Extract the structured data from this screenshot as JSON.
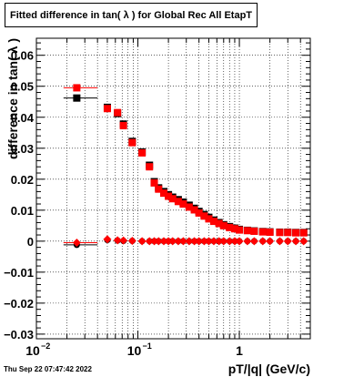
{
  "canvas": {
    "title": "Fitted difference in tan( λ ) for Global Rec All EtapT",
    "timestamp": "Thu Sep 22 07:47:42 2022"
  },
  "chart_data": {
    "type": "scatter",
    "title": "Fitted difference in tan( λ ) for Global Rec All EtapT",
    "xlabel": "pT/|q| (GeV/c)",
    "ylabel": "difference in tan( λ )",
    "xscale": "log",
    "xlim": [
      0.01,
      5.0
    ],
    "ylim": [
      -0.0315,
      0.0655
    ],
    "grid": true,
    "x_ticks": [
      {
        "value": 0.01,
        "label": "10",
        "exp": "−2"
      },
      {
        "value": 0.1,
        "label": "10",
        "exp": "−1"
      },
      {
        "value": 1,
        "label": "1",
        "exp": ""
      }
    ],
    "y_ticks": [
      {
        "value": -0.03,
        "label": "−0.03"
      },
      {
        "value": -0.02,
        "label": "−0.02"
      },
      {
        "value": -0.01,
        "label": "−0.01"
      },
      {
        "value": 0,
        "label": "0"
      },
      {
        "value": 0.01,
        "label": "0.01"
      },
      {
        "value": 0.02,
        "label": "0.02"
      },
      {
        "value": 0.03,
        "label": "0.03"
      },
      {
        "value": 0.04,
        "label": "0.04"
      },
      {
        "value": 0.05,
        "label": "0.05"
      },
      {
        "value": 0.06,
        "label": "0.06"
      }
    ],
    "series": [
      {
        "color": "#000000",
        "marker": "square",
        "points": [
          {
            "x": 0.025,
            "y": 0.0462,
            "x_lo": 0.0185,
            "x_hi": 0.04
          },
          {
            "x": 0.05,
            "y": 0.0432
          },
          {
            "x": 0.063,
            "y": 0.0412
          },
          {
            "x": 0.072,
            "y": 0.0378
          },
          {
            "x": 0.088,
            "y": 0.0322
          },
          {
            "x": 0.11,
            "y": 0.0288
          },
          {
            "x": 0.13,
            "y": 0.0245
          },
          {
            "x": 0.145,
            "y": 0.0192
          },
          {
            "x": 0.16,
            "y": 0.0172
          },
          {
            "x": 0.18,
            "y": 0.016
          },
          {
            "x": 0.2,
            "y": 0.015
          },
          {
            "x": 0.22,
            "y": 0.0142
          },
          {
            "x": 0.25,
            "y": 0.0134
          },
          {
            "x": 0.28,
            "y": 0.0126
          },
          {
            "x": 0.32,
            "y": 0.0116
          },
          {
            "x": 0.36,
            "y": 0.0106
          },
          {
            "x": 0.4,
            "y": 0.0096
          },
          {
            "x": 0.45,
            "y": 0.0086
          },
          {
            "x": 0.5,
            "y": 0.0077
          },
          {
            "x": 0.56,
            "y": 0.0068
          },
          {
            "x": 0.63,
            "y": 0.006
          },
          {
            "x": 0.7,
            "y": 0.0053
          },
          {
            "x": 0.8,
            "y": 0.0047
          },
          {
            "x": 0.9,
            "y": 0.0042
          },
          {
            "x": 1.0,
            "y": 0.0038
          },
          {
            "x": 1.2,
            "y": 0.0035
          },
          {
            "x": 1.4,
            "y": 0.0033
          },
          {
            "x": 1.7,
            "y": 0.0031
          },
          {
            "x": 2.0,
            "y": 0.003
          },
          {
            "x": 2.5,
            "y": 0.0029
          },
          {
            "x": 3.0,
            "y": 0.0029
          },
          {
            "x": 3.6,
            "y": 0.0028
          },
          {
            "x": 4.3,
            "y": 0.0028
          }
        ]
      },
      {
        "color": "#ff0000",
        "marker": "square",
        "points": [
          {
            "x": 0.025,
            "y": 0.0495,
            "x_lo": 0.0185,
            "x_hi": 0.04
          },
          {
            "x": 0.05,
            "y": 0.0428
          },
          {
            "x": 0.063,
            "y": 0.0415
          },
          {
            "x": 0.072,
            "y": 0.0373
          },
          {
            "x": 0.088,
            "y": 0.0318
          },
          {
            "x": 0.11,
            "y": 0.0285
          },
          {
            "x": 0.13,
            "y": 0.024
          },
          {
            "x": 0.145,
            "y": 0.0188
          },
          {
            "x": 0.16,
            "y": 0.0168
          },
          {
            "x": 0.18,
            "y": 0.0155
          },
          {
            "x": 0.2,
            "y": 0.0145
          },
          {
            "x": 0.22,
            "y": 0.0137
          },
          {
            "x": 0.25,
            "y": 0.0128
          },
          {
            "x": 0.28,
            "y": 0.012
          },
          {
            "x": 0.32,
            "y": 0.011
          },
          {
            "x": 0.36,
            "y": 0.0101
          },
          {
            "x": 0.4,
            "y": 0.0091
          },
          {
            "x": 0.45,
            "y": 0.0081
          },
          {
            "x": 0.5,
            "y": 0.0072
          },
          {
            "x": 0.56,
            "y": 0.0064
          },
          {
            "x": 0.63,
            "y": 0.0057
          },
          {
            "x": 0.7,
            "y": 0.005
          },
          {
            "x": 0.8,
            "y": 0.0044
          },
          {
            "x": 0.9,
            "y": 0.004
          },
          {
            "x": 1.0,
            "y": 0.0036
          },
          {
            "x": 1.2,
            "y": 0.0034
          },
          {
            "x": 1.4,
            "y": 0.0032
          },
          {
            "x": 1.7,
            "y": 0.003
          },
          {
            "x": 2.0,
            "y": 0.0029
          },
          {
            "x": 2.5,
            "y": 0.0028
          },
          {
            "x": 3.0,
            "y": 0.0028
          },
          {
            "x": 3.6,
            "y": 0.0027
          },
          {
            "x": 4.3,
            "y": 0.0027
          }
        ]
      },
      {
        "color": "#000000",
        "marker": "circle",
        "points": [
          {
            "x": 0.025,
            "y": -0.0012,
            "x_lo": 0.0185,
            "x_hi": 0.04
          },
          {
            "x": 0.05,
            "y": 0.0004
          },
          {
            "x": 0.063,
            "y": 0.0002
          },
          {
            "x": 0.072,
            "y": 0.0001
          },
          {
            "x": 0.088,
            "y": 0.0001
          },
          {
            "x": 0.11,
            "y": 0.0
          },
          {
            "x": 0.13,
            "y": 0.0
          },
          {
            "x": 0.145,
            "y": 0.0
          },
          {
            "x": 0.16,
            "y": 0.0
          },
          {
            "x": 0.18,
            "y": 0.0
          },
          {
            "x": 0.2,
            "y": 0.0
          },
          {
            "x": 0.22,
            "y": 0.0
          },
          {
            "x": 0.25,
            "y": 0.0
          },
          {
            "x": 0.28,
            "y": 0.0
          },
          {
            "x": 0.32,
            "y": 0.0
          },
          {
            "x": 0.36,
            "y": 0.0
          },
          {
            "x": 0.4,
            "y": 0.0
          },
          {
            "x": 0.45,
            "y": 0.0
          },
          {
            "x": 0.5,
            "y": 0.0
          },
          {
            "x": 0.56,
            "y": 0.0
          },
          {
            "x": 0.63,
            "y": 0.0
          },
          {
            "x": 0.7,
            "y": 0.0
          },
          {
            "x": 0.8,
            "y": 0.0
          },
          {
            "x": 0.9,
            "y": 0.0
          },
          {
            "x": 1.0,
            "y": 0.0
          },
          {
            "x": 1.2,
            "y": 0.0
          },
          {
            "x": 1.4,
            "y": 0.0
          },
          {
            "x": 1.7,
            "y": 0.0
          },
          {
            "x": 2.0,
            "y": 0.0
          },
          {
            "x": 2.5,
            "y": 0.0
          },
          {
            "x": 3.0,
            "y": 0.0
          },
          {
            "x": 3.6,
            "y": 0.0
          },
          {
            "x": 4.3,
            "y": 0.0
          }
        ]
      },
      {
        "color": "#ff0000",
        "marker": "diamond",
        "points": [
          {
            "x": 0.025,
            "y": -0.0005,
            "x_lo": 0.0185,
            "x_hi": 0.04
          },
          {
            "x": 0.05,
            "y": 0.0006
          },
          {
            "x": 0.063,
            "y": 0.0003
          },
          {
            "x": 0.072,
            "y": 0.0002
          },
          {
            "x": 0.088,
            "y": 0.0001
          },
          {
            "x": 0.11,
            "y": 0.0
          },
          {
            "x": 0.13,
            "y": 0.0
          },
          {
            "x": 0.145,
            "y": 0.0
          },
          {
            "x": 0.16,
            "y": 0.0
          },
          {
            "x": 0.18,
            "y": 0.0
          },
          {
            "x": 0.2,
            "y": 0.0
          },
          {
            "x": 0.22,
            "y": 0.0
          },
          {
            "x": 0.25,
            "y": 0.0
          },
          {
            "x": 0.28,
            "y": 0.0
          },
          {
            "x": 0.32,
            "y": 0.0
          },
          {
            "x": 0.36,
            "y": 0.0
          },
          {
            "x": 0.4,
            "y": 0.0
          },
          {
            "x": 0.45,
            "y": 0.0
          },
          {
            "x": 0.5,
            "y": 0.0
          },
          {
            "x": 0.56,
            "y": 0.0
          },
          {
            "x": 0.63,
            "y": 0.0
          },
          {
            "x": 0.7,
            "y": 0.0
          },
          {
            "x": 0.8,
            "y": 0.0
          },
          {
            "x": 0.9,
            "y": 0.0
          },
          {
            "x": 1.0,
            "y": 0.0
          },
          {
            "x": 1.2,
            "y": 0.0
          },
          {
            "x": 1.4,
            "y": 0.0
          },
          {
            "x": 1.7,
            "y": 0.0
          },
          {
            "x": 2.0,
            "y": 0.0
          },
          {
            "x": 2.5,
            "y": 0.0
          },
          {
            "x": 3.0,
            "y": 0.0
          },
          {
            "x": 3.6,
            "y": 0.0
          },
          {
            "x": 4.3,
            "y": 0.0
          }
        ]
      }
    ]
  }
}
